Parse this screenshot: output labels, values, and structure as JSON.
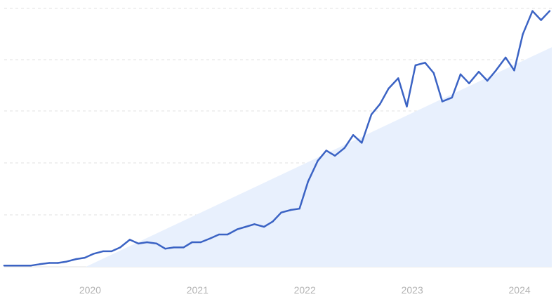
{
  "chart_data": {
    "type": "line",
    "title": "",
    "xlabel": "",
    "ylabel": "",
    "grid": true,
    "legend": "none",
    "x_ticks": [
      "2020",
      "2021",
      "2022",
      "2023",
      "2024"
    ],
    "x_tick_years": [
      2020,
      2021,
      2022,
      2023,
      2024
    ],
    "xlim": [
      2019.2,
      2024.3
    ],
    "ylim": [
      0,
      100
    ],
    "colors": {
      "line": "#3b63c4",
      "trend_area": "#e8f0fd",
      "grid": "#e2e2e2",
      "tick_label": "#b3b3b3"
    },
    "series": [
      {
        "x": [
          2019.2,
          2019.28,
          2019.37,
          2019.45,
          2019.53,
          2019.62,
          2019.7,
          2019.78,
          2019.87,
          2019.95,
          2020.03,
          2020.12,
          2020.2,
          2020.28,
          2020.37,
          2020.45,
          2020.53,
          2020.62,
          2020.7,
          2020.78,
          2020.87,
          2020.95,
          2021.03,
          2021.12,
          2021.2,
          2021.28,
          2021.37,
          2021.45,
          2021.53,
          2021.62,
          2021.7,
          2021.78,
          2021.87,
          2021.95,
          2022.03,
          2022.12,
          2022.2,
          2022.28,
          2022.37,
          2022.45,
          2022.53,
          2022.62,
          2022.7,
          2022.78,
          2022.87,
          2022.95,
          2023.03,
          2023.12,
          2023.2,
          2023.28,
          2023.37,
          2023.45,
          2023.53,
          2023.62,
          2023.7,
          2023.78,
          2023.87,
          2023.95,
          2024.03,
          2024.12,
          2024.2,
          2024.28
        ],
        "y": [
          0.5,
          0.5,
          0.5,
          0.5,
          1.0,
          1.5,
          1.5,
          2.0,
          3.0,
          3.5,
          5.0,
          6.0,
          6.0,
          7.5,
          10.5,
          9.0,
          9.5,
          9.0,
          7.0,
          7.5,
          7.5,
          9.5,
          9.5,
          11.0,
          12.5,
          12.5,
          14.5,
          15.5,
          16.5,
          15.5,
          17.5,
          21.0,
          22.0,
          22.5,
          33.0,
          41.0,
          45.0,
          43.0,
          46.0,
          51.0,
          48.0,
          59.0,
          63.0,
          69.0,
          73.0,
          62.0,
          78.0,
          79.0,
          75.0,
          64.0,
          65.5,
          74.5,
          71.0,
          75.5,
          72.0,
          76.0,
          81.0,
          76.0,
          90.0,
          99.0,
          95.5,
          99.0
        ]
      }
    ],
    "trend": {
      "x_start": 2019.96,
      "x_end": 2024.3,
      "y_start": 0,
      "y_end": 85
    }
  }
}
